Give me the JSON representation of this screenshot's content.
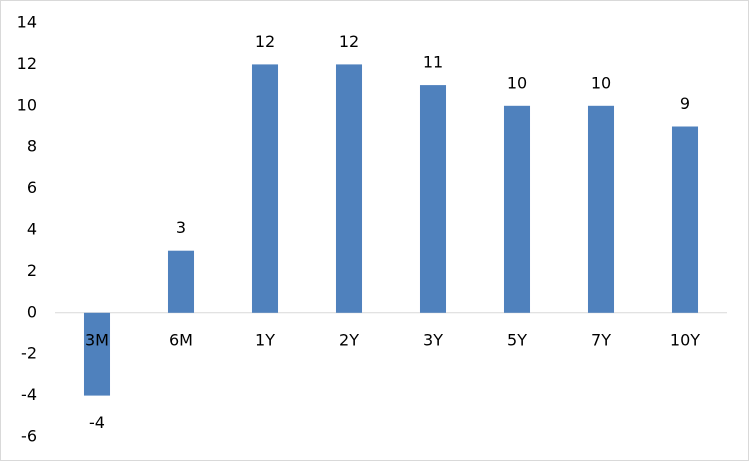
{
  "chart_data": {
    "type": "bar",
    "categories": [
      "3M",
      "6M",
      "1Y",
      "2Y",
      "3Y",
      "5Y",
      "7Y",
      "10Y"
    ],
    "values": [
      -4,
      3,
      12,
      12,
      11,
      10,
      10,
      9
    ],
    "color": "#4f81bd",
    "ylim": [
      -6,
      14
    ],
    "yticks": [
      -6,
      -4,
      -2,
      0,
      2,
      4,
      6,
      8,
      10,
      12,
      14
    ],
    "grid": false,
    "data_labels": true
  }
}
